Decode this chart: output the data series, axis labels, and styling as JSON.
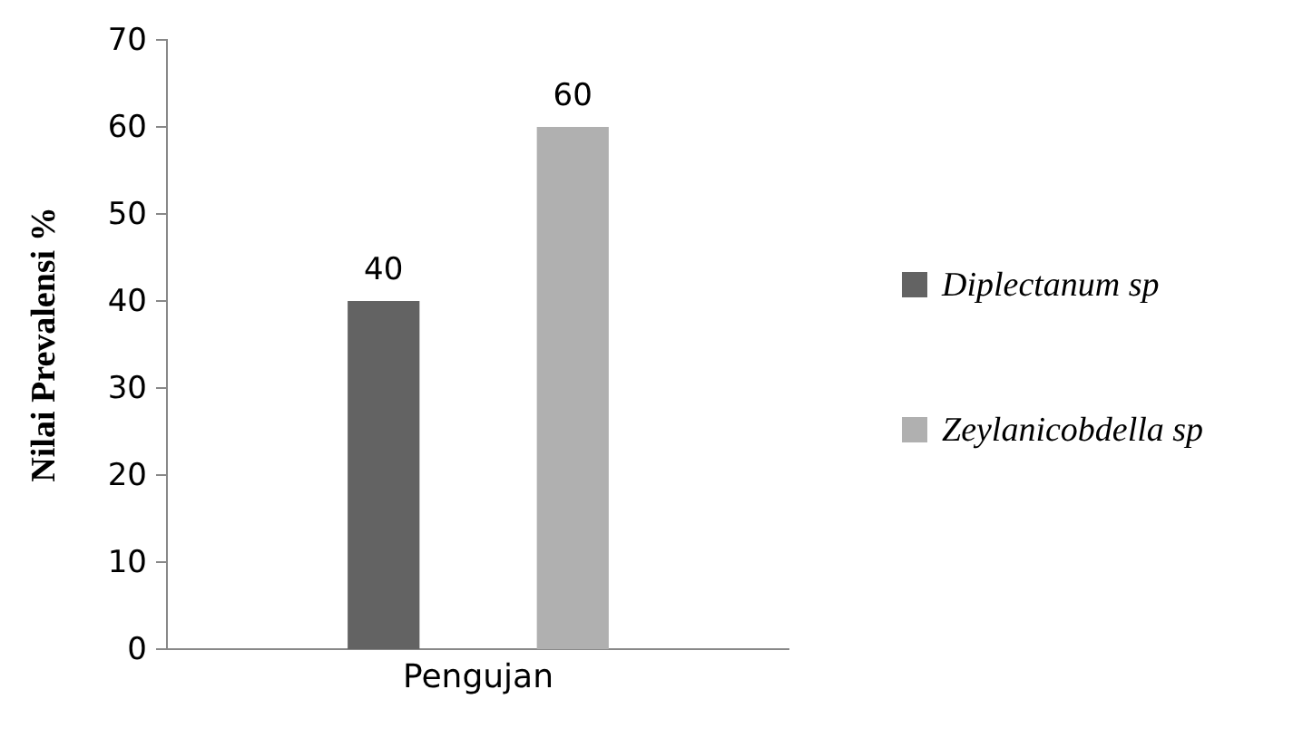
{
  "chart_data": {
    "type": "bar",
    "ylabel": "Nilai Prevalensi %",
    "categories": [
      "Pengujan"
    ],
    "series": [
      {
        "name": "Diplectanum sp",
        "color": "#636363",
        "values": [
          40
        ]
      },
      {
        "name": "Zeylanicobdella sp",
        "color": "#b0b0b0",
        "values": [
          60
        ]
      }
    ],
    "ylim": [
      0,
      70
    ],
    "yticks": [
      0,
      10,
      20,
      30,
      40,
      50,
      60,
      70
    ],
    "data_labels": true,
    "legend": "right",
    "grid": false
  }
}
